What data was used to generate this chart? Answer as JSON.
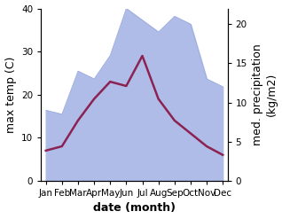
{
  "months": [
    "Jan",
    "Feb",
    "Mar",
    "Apr",
    "May",
    "Jun",
    "Jul",
    "Aug",
    "Sep",
    "Oct",
    "Nov",
    "Dec"
  ],
  "temperature": [
    7.0,
    8.0,
    14.0,
    19.0,
    23.0,
    22.0,
    29.0,
    19.0,
    14.0,
    11.0,
    8.0,
    6.0
  ],
  "precipitation": [
    9.0,
    8.5,
    14.0,
    13.0,
    16.0,
    22.0,
    20.5,
    19.0,
    21.0,
    20.0,
    13.0,
    12.0
  ],
  "temp_color": "#8B2252",
  "precip_color": "#b0bce8",
  "precip_edge_color": "#9aaade",
  "temp_ylim": [
    0,
    40
  ],
  "precip_ylim": [
    0,
    22
  ],
  "xlabel": "date (month)",
  "ylabel_left": "max temp (C)",
  "ylabel_right": "med. precipitation\n(kg/m2)",
  "tick_fontsize": 7.5,
  "label_fontsize": 9
}
